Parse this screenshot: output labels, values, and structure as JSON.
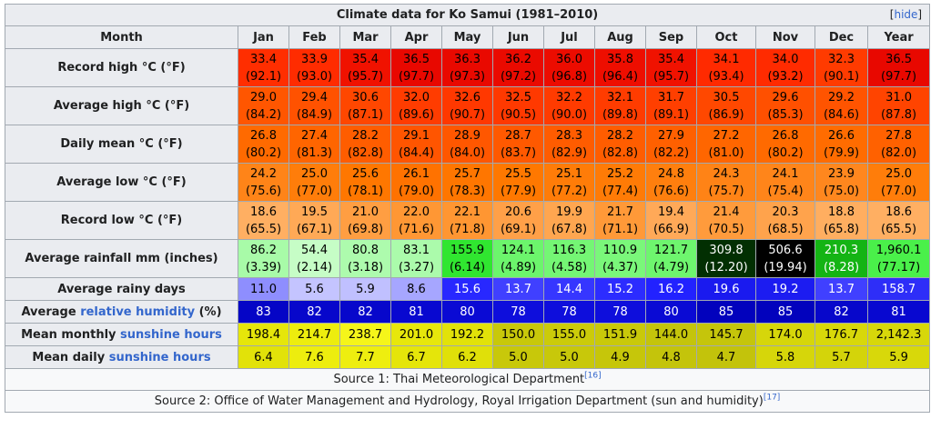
{
  "caption": "Climate data for Ko Samui (1981–2010)",
  "hide_label": "hide",
  "header_label": "Month",
  "months": [
    "Jan",
    "Feb",
    "Mar",
    "Apr",
    "May",
    "Jun",
    "Jul",
    "Aug",
    "Sep",
    "Oct",
    "Nov",
    "Dec",
    "Year"
  ],
  "rows": [
    {
      "label": "Record high °C (°F)",
      "kind": "double",
      "cells": [
        {
          "v": "33.4",
          "s": "(92.1)",
          "bg": "#ff2e00",
          "fg": "#000000"
        },
        {
          "v": "33.9",
          "s": "(93.0)",
          "bg": "#ff2c00",
          "fg": "#000000"
        },
        {
          "v": "35.4",
          "s": "(95.7)",
          "bg": "#f01200",
          "fg": "#000000"
        },
        {
          "v": "36.5",
          "s": "(97.7)",
          "bg": "#e80800",
          "fg": "#000000"
        },
        {
          "v": "36.3",
          "s": "(97.3)",
          "bg": "#e90900",
          "fg": "#000000"
        },
        {
          "v": "36.2",
          "s": "(97.2)",
          "bg": "#ea0a00",
          "fg": "#000000"
        },
        {
          "v": "36.0",
          "s": "(96.8)",
          "bg": "#ec0c00",
          "fg": "#000000"
        },
        {
          "v": "35.8",
          "s": "(96.4)",
          "bg": "#ee0e00",
          "fg": "#000000"
        },
        {
          "v": "35.4",
          "s": "(95.7)",
          "bg": "#f01200",
          "fg": "#000000"
        },
        {
          "v": "34.1",
          "s": "(93.4)",
          "bg": "#ff2a00",
          "fg": "#000000"
        },
        {
          "v": "34.0",
          "s": "(93.2)",
          "bg": "#ff2b00",
          "fg": "#000000"
        },
        {
          "v": "32.3",
          "s": "(90.1)",
          "bg": "#ff3b00",
          "fg": "#000000"
        },
        {
          "v": "36.5",
          "s": "(97.7)",
          "bg": "#e80800",
          "fg": "#000000"
        }
      ]
    },
    {
      "label": "Average high °C (°F)",
      "kind": "double",
      "cells": [
        {
          "v": "29.0",
          "s": "(84.2)",
          "bg": "#ff5600",
          "fg": "#000000"
        },
        {
          "v": "29.4",
          "s": "(84.9)",
          "bg": "#ff5200",
          "fg": "#000000"
        },
        {
          "v": "30.6",
          "s": "(87.1)",
          "bg": "#ff4700",
          "fg": "#000000"
        },
        {
          "v": "32.0",
          "s": "(89.6)",
          "bg": "#ff3c00",
          "fg": "#000000"
        },
        {
          "v": "32.6",
          "s": "(90.7)",
          "bg": "#ff3800",
          "fg": "#000000"
        },
        {
          "v": "32.5",
          "s": "(90.5)",
          "bg": "#ff3900",
          "fg": "#000000"
        },
        {
          "v": "32.2",
          "s": "(90.0)",
          "bg": "#ff3b00",
          "fg": "#000000"
        },
        {
          "v": "32.1",
          "s": "(89.8)",
          "bg": "#ff3c00",
          "fg": "#000000"
        },
        {
          "v": "31.7",
          "s": "(89.1)",
          "bg": "#ff3f00",
          "fg": "#000000"
        },
        {
          "v": "30.5",
          "s": "(86.9)",
          "bg": "#ff4800",
          "fg": "#000000"
        },
        {
          "v": "29.6",
          "s": "(85.3)",
          "bg": "#ff5000",
          "fg": "#000000"
        },
        {
          "v": "29.2",
          "s": "(84.6)",
          "bg": "#ff5400",
          "fg": "#000000"
        },
        {
          "v": "31.0",
          "s": "(87.8)",
          "bg": "#ff4400",
          "fg": "#000000"
        }
      ]
    },
    {
      "label": "Daily mean °C (°F)",
      "kind": "double",
      "cells": [
        {
          "v": "26.8",
          "s": "(80.2)",
          "bg": "#ff6a00",
          "fg": "#000000"
        },
        {
          "v": "27.4",
          "s": "(81.3)",
          "bg": "#ff6500",
          "fg": "#000000"
        },
        {
          "v": "28.2",
          "s": "(82.8)",
          "bg": "#ff5d00",
          "fg": "#000000"
        },
        {
          "v": "29.1",
          "s": "(84.4)",
          "bg": "#ff5500",
          "fg": "#000000"
        },
        {
          "v": "28.9",
          "s": "(84.0)",
          "bg": "#ff5700",
          "fg": "#000000"
        },
        {
          "v": "28.7",
          "s": "(83.7)",
          "bg": "#ff5900",
          "fg": "#000000"
        },
        {
          "v": "28.3",
          "s": "(82.9)",
          "bg": "#ff5c00",
          "fg": "#000000"
        },
        {
          "v": "28.2",
          "s": "(82.8)",
          "bg": "#ff5d00",
          "fg": "#000000"
        },
        {
          "v": "27.9",
          "s": "(82.2)",
          "bg": "#ff6000",
          "fg": "#000000"
        },
        {
          "v": "27.2",
          "s": "(81.0)",
          "bg": "#ff6600",
          "fg": "#000000"
        },
        {
          "v": "26.8",
          "s": "(80.2)",
          "bg": "#ff6a00",
          "fg": "#000000"
        },
        {
          "v": "26.6",
          "s": "(79.9)",
          "bg": "#ff6c00",
          "fg": "#000000"
        },
        {
          "v": "27.8",
          "s": "(82.0)",
          "bg": "#ff6100",
          "fg": "#000000"
        }
      ]
    },
    {
      "label": "Average low °C (°F)",
      "kind": "double",
      "cells": [
        {
          "v": "24.2",
          "s": "(75.6)",
          "bg": "#ff8418",
          "fg": "#000000"
        },
        {
          "v": "25.0",
          "s": "(77.0)",
          "bg": "#ff7d0a",
          "fg": "#000000"
        },
        {
          "v": "25.6",
          "s": "(78.1)",
          "bg": "#ff7700",
          "fg": "#000000"
        },
        {
          "v": "26.1",
          "s": "(79.0)",
          "bg": "#ff7200",
          "fg": "#000000"
        },
        {
          "v": "25.7",
          "s": "(78.3)",
          "bg": "#ff7600",
          "fg": "#000000"
        },
        {
          "v": "25.5",
          "s": "(77.9)",
          "bg": "#ff7800",
          "fg": "#000000"
        },
        {
          "v": "25.1",
          "s": "(77.2)",
          "bg": "#ff7c08",
          "fg": "#000000"
        },
        {
          "v": "25.2",
          "s": "(77.4)",
          "bg": "#ff7b06",
          "fg": "#000000"
        },
        {
          "v": "24.8",
          "s": "(76.6)",
          "bg": "#ff7f0e",
          "fg": "#000000"
        },
        {
          "v": "24.3",
          "s": "(75.7)",
          "bg": "#ff8316",
          "fg": "#000000"
        },
        {
          "v": "24.1",
          "s": "(75.4)",
          "bg": "#ff851a",
          "fg": "#000000"
        },
        {
          "v": "23.9",
          "s": "(75.0)",
          "bg": "#ff871e",
          "fg": "#000000"
        },
        {
          "v": "25.0",
          "s": "(77.0)",
          "bg": "#ff7d0a",
          "fg": "#000000"
        }
      ]
    },
    {
      "label": "Record low °C (°F)",
      "kind": "double",
      "cells": [
        {
          "v": "18.6",
          "s": "(65.5)",
          "bg": "#ffaf62",
          "fg": "#000000"
        },
        {
          "v": "19.5",
          "s": "(67.1)",
          "bg": "#ffa956",
          "fg": "#000000"
        },
        {
          "v": "21.0",
          "s": "(69.8)",
          "bg": "#ff9e42",
          "fg": "#000000"
        },
        {
          "v": "22.0",
          "s": "(71.6)",
          "bg": "#ff9734",
          "fg": "#000000"
        },
        {
          "v": "22.1",
          "s": "(71.8)",
          "bg": "#ff9632",
          "fg": "#000000"
        },
        {
          "v": "20.6",
          "s": "(69.1)",
          "bg": "#ffa048",
          "fg": "#000000"
        },
        {
          "v": "19.9",
          "s": "(67.8)",
          "bg": "#ffa650",
          "fg": "#000000"
        },
        {
          "v": "21.7",
          "s": "(71.1)",
          "bg": "#ff9938",
          "fg": "#000000"
        },
        {
          "v": "19.4",
          "s": "(66.9)",
          "bg": "#ffa958",
          "fg": "#000000"
        },
        {
          "v": "21.4",
          "s": "(70.5)",
          "bg": "#ff9b3c",
          "fg": "#000000"
        },
        {
          "v": "20.3",
          "s": "(68.5)",
          "bg": "#ffa34c",
          "fg": "#000000"
        },
        {
          "v": "18.8",
          "s": "(65.8)",
          "bg": "#ffae60",
          "fg": "#000000"
        },
        {
          "v": "18.6",
          "s": "(65.5)",
          "bg": "#ffaf62",
          "fg": "#000000"
        }
      ]
    },
    {
      "label": "Average rainfall mm (inches)",
      "kind": "double",
      "cells": [
        {
          "v": "86.2",
          "s": "(3.39)",
          "bg": "#a8fba8",
          "fg": "#000000"
        },
        {
          "v": "54.4",
          "s": "(2.14)",
          "bg": "#c6fdc6",
          "fg": "#000000"
        },
        {
          "v": "80.8",
          "s": "(3.18)",
          "bg": "#adfbad",
          "fg": "#000000"
        },
        {
          "v": "83.1",
          "s": "(3.27)",
          "bg": "#abfbab",
          "fg": "#000000"
        },
        {
          "v": "155.9",
          "s": "(6.14)",
          "bg": "#30e630",
          "fg": "#000000"
        },
        {
          "v": "124.1",
          "s": "(4.89)",
          "bg": "#6cf56c",
          "fg": "#000000"
        },
        {
          "v": "116.3",
          "s": "(4.58)",
          "bg": "#74f674",
          "fg": "#000000"
        },
        {
          "v": "110.9",
          "s": "(4.37)",
          "bg": "#7af77a",
          "fg": "#000000"
        },
        {
          "v": "121.7",
          "s": "(4.79)",
          "bg": "#6ef56e",
          "fg": "#000000"
        },
        {
          "v": "309.8",
          "s": "(12.20)",
          "bg": "#022f02",
          "fg": "#ffffff"
        },
        {
          "v": "506.6",
          "s": "(19.94)",
          "bg": "#000000",
          "fg": "#ffffff"
        },
        {
          "v": "210.3",
          "s": "(8.28)",
          "bg": "#14b414",
          "fg": "#ffffff"
        },
        {
          "v": "1,960.1",
          "s": "(77.17)",
          "bg": "#4af04a",
          "fg": "#000000"
        }
      ]
    },
    {
      "label": "Average rainy days",
      "kind": "single",
      "cells": [
        {
          "v": "11.0",
          "bg": "#8e8efe",
          "fg": "#000000"
        },
        {
          "v": "5.6",
          "bg": "#c4c4ff",
          "fg": "#000000"
        },
        {
          "v": "5.9",
          "bg": "#c0c0ff",
          "fg": "#000000"
        },
        {
          "v": "8.6",
          "bg": "#a6a6ff",
          "fg": "#000000"
        },
        {
          "v": "15.6",
          "bg": "#2828ff",
          "fg": "#ffffff"
        },
        {
          "v": "13.7",
          "bg": "#4040ff",
          "fg": "#ffffff"
        },
        {
          "v": "14.4",
          "bg": "#3636ff",
          "fg": "#ffffff"
        },
        {
          "v": "15.2",
          "bg": "#2c2cff",
          "fg": "#ffffff"
        },
        {
          "v": "16.2",
          "bg": "#2222ff",
          "fg": "#ffffff"
        },
        {
          "v": "19.6",
          "bg": "#1a1aef",
          "fg": "#ffffff"
        },
        {
          "v": "19.2",
          "bg": "#1c1cf1",
          "fg": "#ffffff"
        },
        {
          "v": "13.7",
          "bg": "#4040ff",
          "fg": "#ffffff"
        },
        {
          "v": "158.7",
          "bg": "#2e2ef8",
          "fg": "#ffffff"
        }
      ]
    },
    {
      "label": "Average relative humidity (%)",
      "kind": "single",
      "label_pre": "Average ",
      "label_link": "relative humidity",
      "label_post": " (%)",
      "cells": [
        {
          "v": "83",
          "bg": "#0505c6",
          "fg": "#ffffff"
        },
        {
          "v": "82",
          "bg": "#0707cb",
          "fg": "#ffffff"
        },
        {
          "v": "82",
          "bg": "#0707cb",
          "fg": "#ffffff"
        },
        {
          "v": "81",
          "bg": "#0808d0",
          "fg": "#ffffff"
        },
        {
          "v": "80",
          "bg": "#0a0ad4",
          "fg": "#ffffff"
        },
        {
          "v": "78",
          "bg": "#0e0edc",
          "fg": "#ffffff"
        },
        {
          "v": "78",
          "bg": "#0e0edc",
          "fg": "#ffffff"
        },
        {
          "v": "78",
          "bg": "#0e0edc",
          "fg": "#ffffff"
        },
        {
          "v": "80",
          "bg": "#0a0ad4",
          "fg": "#ffffff"
        },
        {
          "v": "85",
          "bg": "#0202bd",
          "fg": "#ffffff"
        },
        {
          "v": "85",
          "bg": "#0202bd",
          "fg": "#ffffff"
        },
        {
          "v": "82",
          "bg": "#0707cb",
          "fg": "#ffffff"
        },
        {
          "v": "81",
          "bg": "#0808d0",
          "fg": "#ffffff"
        }
      ]
    },
    {
      "label": "Mean monthly sunshine hours",
      "kind": "single",
      "label_pre": "Mean monthly ",
      "label_link": "sunshine hours",
      "label_post": "",
      "cells": [
        {
          "v": "198.4",
          "bg": "#e6e60a",
          "fg": "#000000"
        },
        {
          "v": "214.7",
          "bg": "#eded0e",
          "fg": "#000000"
        },
        {
          "v": "238.7",
          "bg": "#f5f51a",
          "fg": "#000000"
        },
        {
          "v": "201.0",
          "bg": "#e7e70b",
          "fg": "#000000"
        },
        {
          "v": "192.2",
          "bg": "#e2e209",
          "fg": "#000000"
        },
        {
          "v": "150.0",
          "bg": "#c8c80a",
          "fg": "#000000"
        },
        {
          "v": "155.0",
          "bg": "#cbcb0a",
          "fg": "#000000"
        },
        {
          "v": "151.9",
          "bg": "#c9c90a",
          "fg": "#000000"
        },
        {
          "v": "144.0",
          "bg": "#c4c40b",
          "fg": "#000000"
        },
        {
          "v": "145.7",
          "bg": "#c5c50b",
          "fg": "#000000"
        },
        {
          "v": "174.0",
          "bg": "#d6d60a",
          "fg": "#000000"
        },
        {
          "v": "176.7",
          "bg": "#d8d80a",
          "fg": "#000000"
        },
        {
          "v": "2,142.3",
          "bg": "#d7d70a",
          "fg": "#000000"
        }
      ]
    },
    {
      "label": "Mean daily sunshine hours",
      "kind": "single",
      "label_pre": "Mean daily ",
      "label_link": "sunshine hours",
      "label_post": "",
      "cells": [
        {
          "v": "6.4",
          "bg": "#e2e209",
          "fg": "#000000"
        },
        {
          "v": "7.6",
          "bg": "#eded0e",
          "fg": "#000000"
        },
        {
          "v": "7.7",
          "bg": "#eeee0f",
          "fg": "#000000"
        },
        {
          "v": "6.7",
          "bg": "#e5e50a",
          "fg": "#000000"
        },
        {
          "v": "6.2",
          "bg": "#e0e009",
          "fg": "#000000"
        },
        {
          "v": "5.0",
          "bg": "#c8c80a",
          "fg": "#000000"
        },
        {
          "v": "5.0",
          "bg": "#c8c80a",
          "fg": "#000000"
        },
        {
          "v": "4.9",
          "bg": "#c6c60a",
          "fg": "#000000"
        },
        {
          "v": "4.8",
          "bg": "#c4c40b",
          "fg": "#000000"
        },
        {
          "v": "4.7",
          "bg": "#c3c30b",
          "fg": "#000000"
        },
        {
          "v": "5.8",
          "bg": "#d6d60a",
          "fg": "#000000"
        },
        {
          "v": "5.7",
          "bg": "#d4d40a",
          "fg": "#000000"
        },
        {
          "v": "5.9",
          "bg": "#d8d80a",
          "fg": "#000000"
        }
      ]
    }
  ],
  "sources": [
    {
      "text": "Source 1: Thai Meteorological Department",
      "ref": "[16]"
    },
    {
      "text": "Source 2: Office of Water Management and Hydrology, Royal Irrigation Department (sun and humidity)",
      "ref": "[17]"
    }
  ]
}
